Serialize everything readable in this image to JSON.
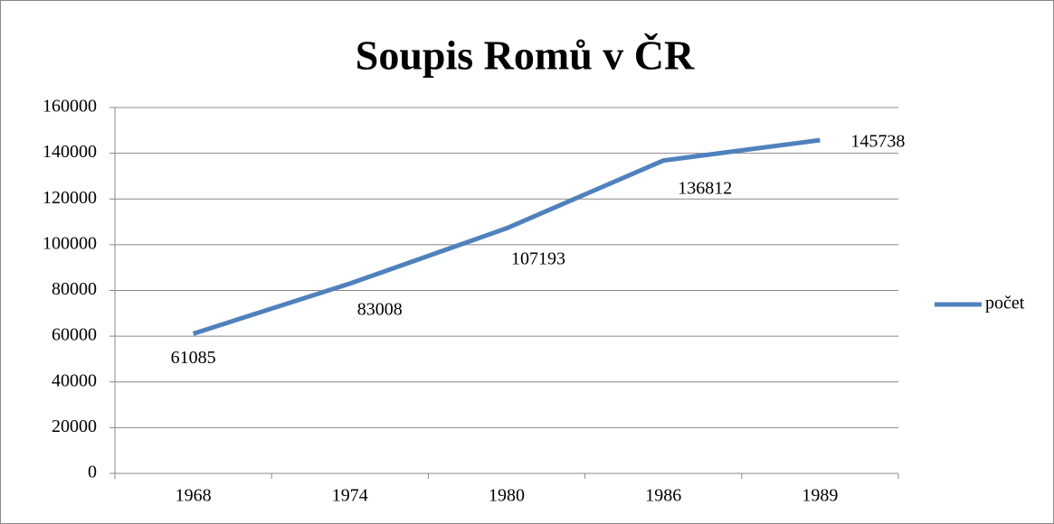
{
  "chart_data": {
    "type": "line",
    "title": "Soupis Romů v ČR",
    "categories": [
      "1968",
      "1974",
      "1980",
      "1986",
      "1989"
    ],
    "series": [
      {
        "name": "počet",
        "color": "#4f81bd",
        "values": [
          61085,
          83008,
          107193,
          136812,
          145738
        ]
      }
    ],
    "ylim": [
      0,
      160000
    ],
    "yticks": [
      0,
      20000,
      40000,
      60000,
      80000,
      100000,
      120000,
      140000,
      160000
    ],
    "grid": true,
    "legend": "right"
  }
}
